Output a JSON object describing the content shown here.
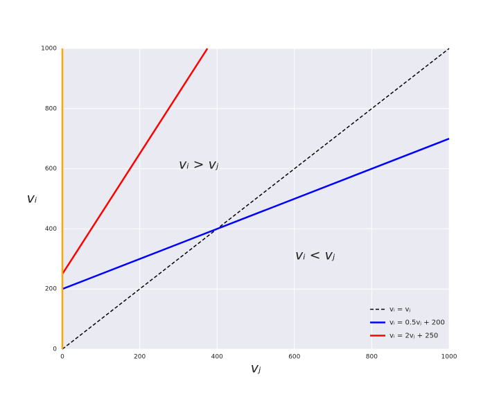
{
  "chart_data": {
    "type": "line",
    "x_label": "vⱼ",
    "y_label": "vᵢ",
    "annotations": [
      "vᵢ > vⱼ",
      "vᵢ < vⱼ"
    ],
    "series": [
      {
        "name": "vᵢ = vⱼ",
        "color": "#000000",
        "linestyle": "dashed",
        "x": [
          0,
          1000
        ],
        "values": [
          0,
          1000
        ]
      },
      {
        "name": "vᵢ = 0.5vⱼ + 200",
        "color": "#0000ff",
        "linestyle": "solid",
        "x": [
          0,
          1000
        ],
        "values": [
          200,
          700
        ]
      },
      {
        "name": "vᵢ = 2vⱼ + 250",
        "color": "#ff0000",
        "linestyle": "solid",
        "x": [
          0,
          375
        ],
        "values": [
          250,
          1000
        ]
      },
      {
        "color": "#ffa500",
        "linestyle": "solid",
        "x": [
          0,
          0
        ],
        "values": [
          0,
          1000
        ]
      }
    ],
    "xlim": [
      0,
      1000
    ],
    "ylim": [
      0,
      1000
    ],
    "xticks": [
      0,
      200,
      400,
      600,
      800,
      1000
    ],
    "yticks": [
      0,
      200,
      400,
      600,
      800,
      1000
    ],
    "grid": true,
    "legend": "lower right"
  }
}
